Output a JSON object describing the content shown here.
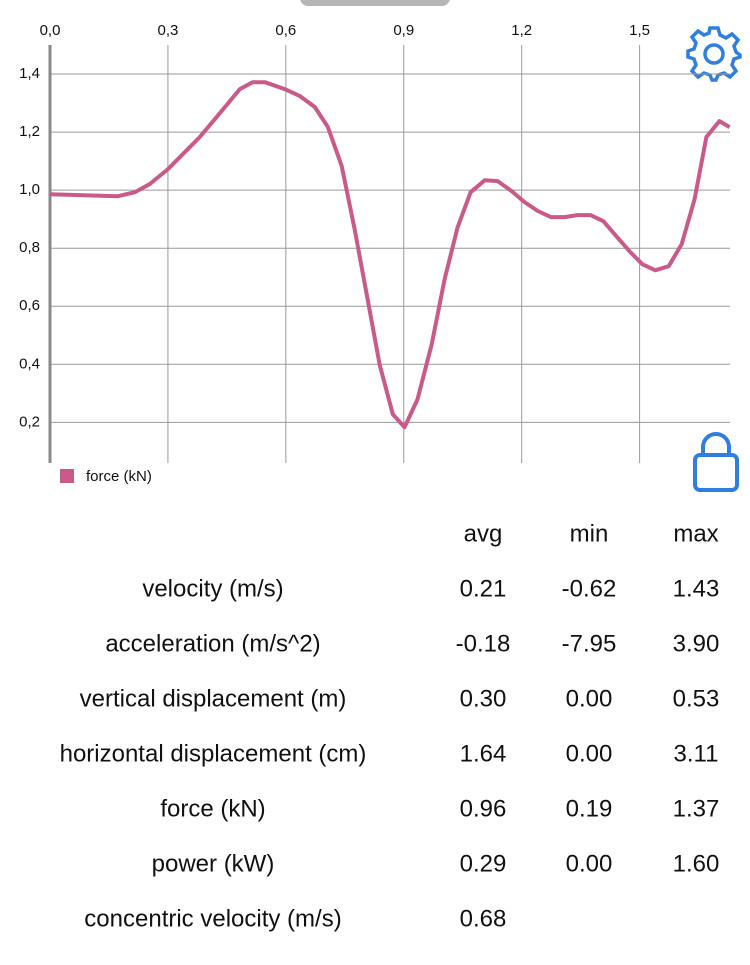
{
  "chart_data": {
    "type": "line",
    "x": [
      0,
      0.076,
      0.173,
      0.216,
      0.254,
      0.3,
      0.381,
      0.445,
      0.483,
      0.516,
      0.547,
      0.597,
      0.636,
      0.674,
      0.707,
      0.742,
      0.775,
      0.808,
      0.839,
      0.872,
      0.902,
      0.935,
      0.971,
      1.004,
      1.037,
      1.07,
      1.106,
      1.139,
      1.174,
      1.207,
      1.241,
      1.274,
      1.309,
      1.342,
      1.375,
      1.408,
      1.441,
      1.474,
      1.507,
      1.54,
      1.574,
      1.607,
      1.64,
      1.67,
      1.703,
      1.729
    ],
    "series": [
      {
        "name": "force (kN)",
        "color": "#c95a8a",
        "values": [
          0.986,
          0.983,
          0.979,
          0.993,
          1.021,
          1.072,
          1.183,
          1.286,
          1.348,
          1.372,
          1.372,
          1.348,
          1.324,
          1.286,
          1.217,
          1.083,
          0.866,
          0.624,
          0.397,
          0.228,
          0.183,
          0.279,
          0.469,
          0.693,
          0.872,
          0.993,
          1.034,
          1.031,
          0.997,
          0.959,
          0.928,
          0.907,
          0.907,
          0.914,
          0.914,
          0.893,
          0.841,
          0.79,
          0.745,
          0.724,
          0.738,
          0.814,
          0.969,
          1.183,
          1.238,
          1.217
        ]
      }
    ],
    "xlim": [
      0,
      1.73
    ],
    "xticks": [
      {
        "value": 0,
        "label": "0,0"
      },
      {
        "value": 0.3,
        "label": "0,3"
      },
      {
        "value": 0.6,
        "label": "0,6"
      },
      {
        "value": 0.9,
        "label": "0,9"
      },
      {
        "value": 1.2,
        "label": "1,2"
      },
      {
        "value": 1.5,
        "label": "1,5"
      }
    ],
    "ylim": [
      0.06,
      1.5
    ],
    "yticks": [
      {
        "value": 0.2,
        "label": "0,2"
      },
      {
        "value": 0.4,
        "label": "0,4"
      },
      {
        "value": 0.6,
        "label": "0,6"
      },
      {
        "value": 0.8,
        "label": "0,8"
      },
      {
        "value": 1.0,
        "label": "1,0"
      },
      {
        "value": 1.2,
        "label": "1,2"
      },
      {
        "value": 1.4,
        "label": "1,4"
      }
    ],
    "grid": true,
    "legend": "bottom-left"
  },
  "table": {
    "columns": [
      "avg",
      "min",
      "max"
    ],
    "rows": [
      {
        "label": "velocity (m/s)",
        "cells": [
          "0.21",
          "-0.62",
          "1.43"
        ]
      },
      {
        "label": "acceleration (m/s^2)",
        "cells": [
          "-0.18",
          "-7.95",
          "3.90"
        ]
      },
      {
        "label": "vertical displacement (m)",
        "cells": [
          "0.30",
          "0.00",
          "0.53"
        ]
      },
      {
        "label": "horizontal displacement (cm)",
        "cells": [
          "1.64",
          "0.00",
          "3.11"
        ]
      },
      {
        "label": "force (kN)",
        "cells": [
          "0.96",
          "0.19",
          "1.37"
        ]
      },
      {
        "label": "power (kW)",
        "cells": [
          "0.29",
          "0.00",
          "1.60"
        ]
      },
      {
        "label": "concentric velocity (m/s)",
        "cells": [
          "0.68"
        ]
      }
    ]
  }
}
